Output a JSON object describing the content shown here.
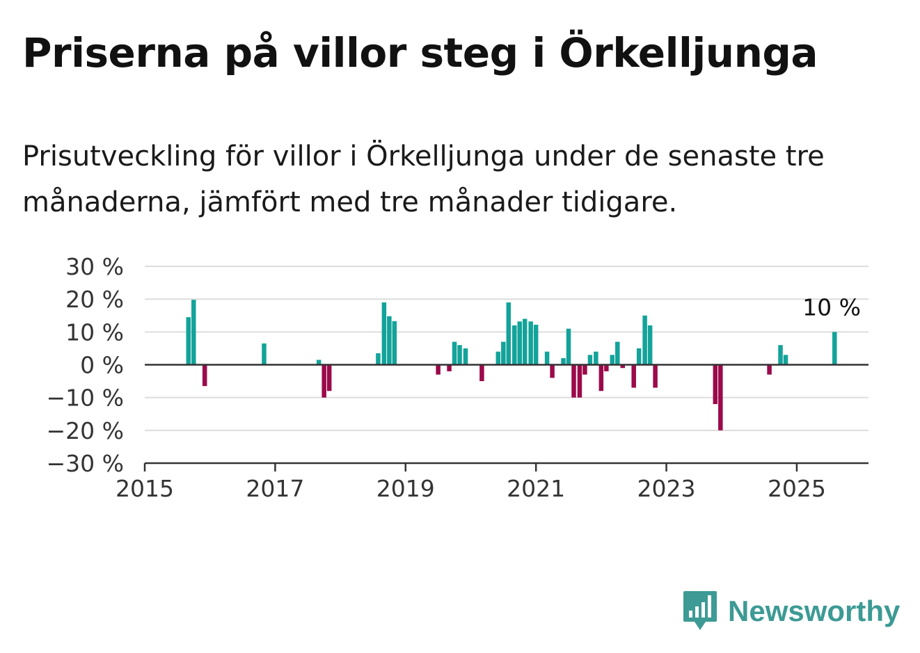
{
  "title": "Priserna på villor steg i Örkelljunga",
  "subtitle": "Prisutveckling för villor i Örkelljunga under de senaste tre månaderna, jämfört med tre månader tidigare.",
  "brand": {
    "name": "Newsworthy",
    "icon": "bar-chart-speech-bubble-icon",
    "color": "#3d9a94"
  },
  "chart_data": {
    "type": "bar",
    "ylim": [
      -30,
      30
    ],
    "xlim": [
      2015.0,
      2026.1
    ],
    "y_ticks": [
      {
        "v": 30,
        "label": "30 %"
      },
      {
        "v": 20,
        "label": "20 %"
      },
      {
        "v": 10,
        "label": "10 %"
      },
      {
        "v": 0,
        "label": "0 %"
      },
      {
        "v": -10,
        "label": "−10 %"
      },
      {
        "v": -20,
        "label": "−20 %"
      },
      {
        "v": -30,
        "label": "−30 %"
      }
    ],
    "x_ticks": [
      {
        "v": 2015,
        "label": "2015"
      },
      {
        "v": 2017,
        "label": "2017"
      },
      {
        "v": 2019,
        "label": "2019"
      },
      {
        "v": 2021,
        "label": "2021"
      },
      {
        "v": 2023,
        "label": "2023"
      },
      {
        "v": 2025,
        "label": "2025"
      }
    ],
    "grid": true,
    "colors": {
      "positive": "#13a39a",
      "negative": "#9b0a4a",
      "grid": "#dddddd",
      "axis": "#333333"
    },
    "annotation": {
      "text": "10 %",
      "x": 2025.58
    },
    "x": [
      2015.67,
      2015.75,
      2015.92,
      2016.83,
      2017.67,
      2017.75,
      2017.83,
      2018.58,
      2018.67,
      2018.75,
      2018.83,
      2019.5,
      2019.67,
      2019.75,
      2019.83,
      2019.92,
      2020.17,
      2020.42,
      2020.5,
      2020.58,
      2020.67,
      2020.75,
      2020.83,
      2020.92,
      2021.0,
      2021.17,
      2021.25,
      2021.42,
      2021.5,
      2021.58,
      2021.67,
      2021.75,
      2021.83,
      2021.92,
      2022.0,
      2022.08,
      2022.17,
      2022.25,
      2022.33,
      2022.5,
      2022.58,
      2022.67,
      2022.75,
      2022.83,
      2023.75,
      2023.83,
      2024.58,
      2024.75,
      2024.83,
      2025.58
    ],
    "values": [
      14.5,
      19.8,
      -6.5,
      6.5,
      1.5,
      -10,
      -8,
      3.5,
      19,
      14.8,
      13.3,
      -3,
      -2,
      7,
      6,
      5,
      -5,
      4,
      7,
      19,
      12,
      13.2,
      14,
      13.2,
      12.2,
      4,
      -4,
      2,
      11,
      -10,
      -10,
      -3,
      3,
      4,
      -8,
      -2,
      3,
      7,
      -1,
      -7,
      5,
      15,
      12,
      -7,
      -12,
      -20,
      -3,
      6,
      3,
      10
    ]
  }
}
